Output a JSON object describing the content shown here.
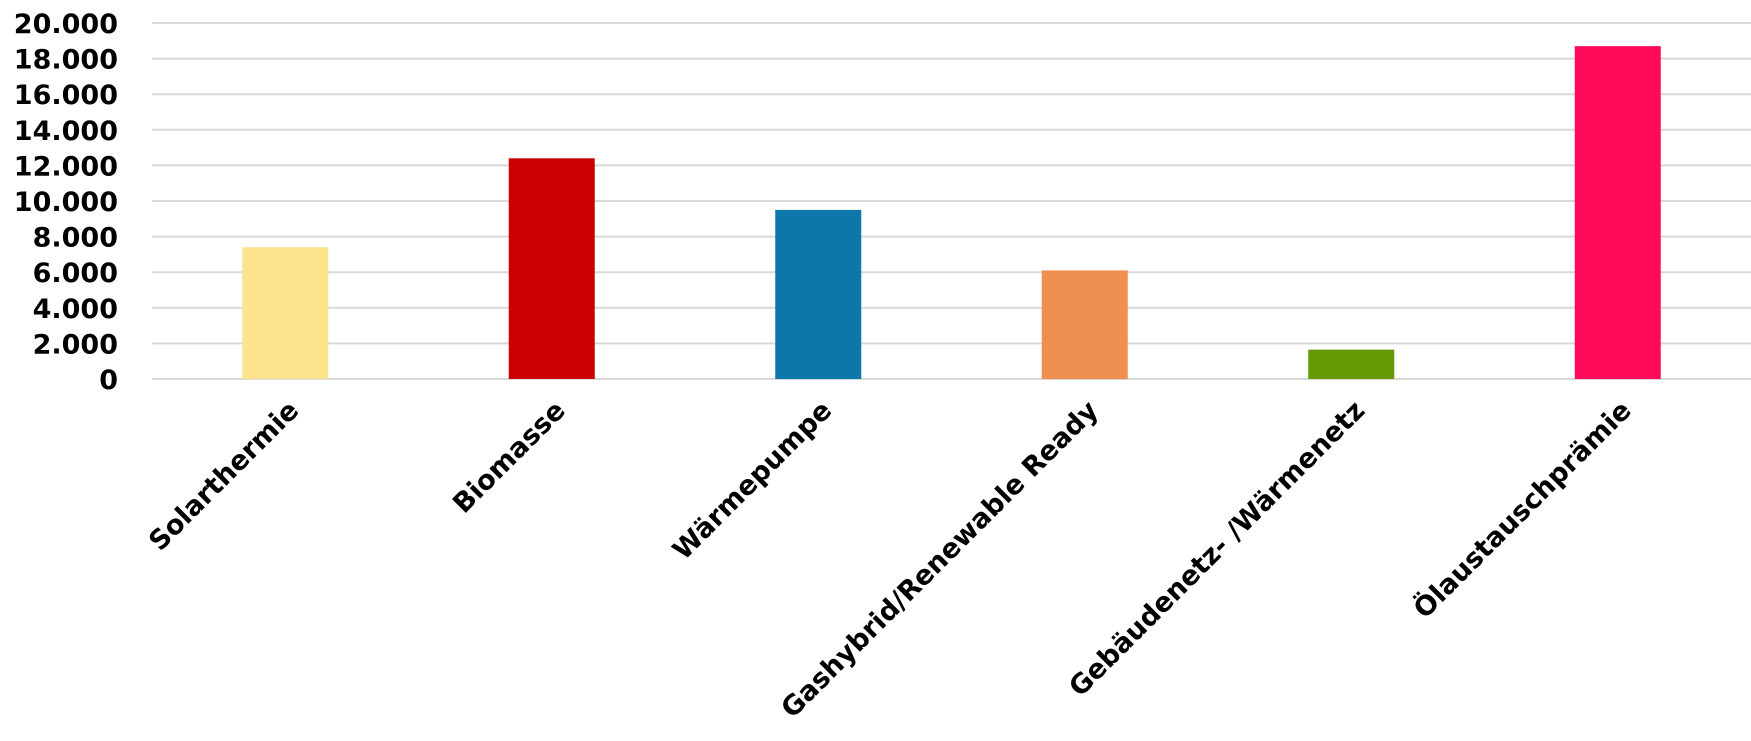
{
  "chart_data": {
    "type": "bar",
    "categories": [
      "Solarthermie",
      "Biomasse",
      "Wärmepumpe",
      "Gashybrid/Renewable Ready",
      "Gebäudenetz- /Wärmenetz",
      "Ölaustauschprämie"
    ],
    "values": [
      7400,
      12400,
      9500,
      6100,
      1650,
      18700
    ],
    "colors": [
      "#fde38c",
      "#cc0000",
      "#0c77a8",
      "#ef8f50",
      "#649b04",
      "#ff0b5a"
    ],
    "ylim": [
      0,
      20000
    ],
    "yticks": [
      0,
      2000,
      4000,
      6000,
      8000,
      10000,
      12000,
      14000,
      16000,
      18000,
      20000
    ],
    "ytick_labels": [
      "0",
      "2.000",
      "4.000",
      "6.000",
      "8.000",
      "10.000",
      "12.000",
      "14.000",
      "16.000",
      "18.000",
      "20.000"
    ],
    "grid": true,
    "legend": "none",
    "title": "",
    "xlabel": "",
    "ylabel": ""
  }
}
